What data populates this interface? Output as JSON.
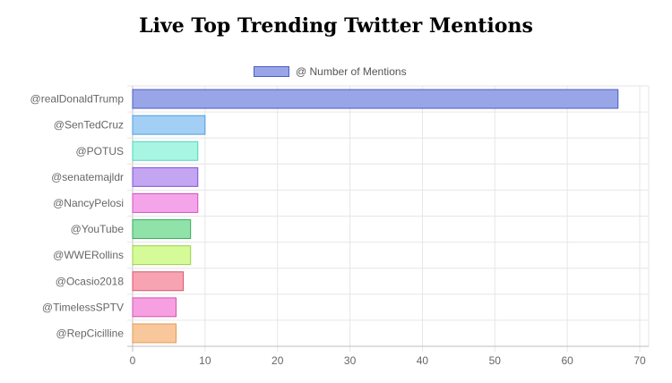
{
  "chart_data": {
    "type": "bar",
    "orientation": "horizontal",
    "title": "Live Top Trending Twitter Mentions",
    "legend": {
      "label": "@ Number of Mentions",
      "placement": "top-center"
    },
    "categories": [
      "@realDonaldTrump",
      "@SenTedCruz",
      "@POTUS",
      "@senatemajldr",
      "@NancyPelosi",
      "@YouTube",
      "@WWERollins",
      "@Ocasio2018",
      "@TimelessSPTV",
      "@RepCicilline"
    ],
    "series": [
      {
        "name": "@ Number of Mentions",
        "values": [
          67,
          10,
          9,
          9,
          9,
          8,
          8,
          7,
          6,
          6
        ]
      }
    ],
    "xlim": [
      0,
      70
    ],
    "x_ticks": [
      0,
      10,
      20,
      30,
      40,
      50,
      60,
      70
    ],
    "grid": true,
    "colors": [
      {
        "fill": "#98a6e8",
        "stroke": "#4e5bc5"
      },
      {
        "fill": "#a3cff5",
        "stroke": "#4b9ee0"
      },
      {
        "fill": "#a8f5e4",
        "stroke": "#4fd6b8"
      },
      {
        "fill": "#c3a5f2",
        "stroke": "#7e52d4"
      },
      {
        "fill": "#f4a5ea",
        "stroke": "#d64fc1"
      },
      {
        "fill": "#8fe3a8",
        "stroke": "#3aaa5c"
      },
      {
        "fill": "#d5fb98",
        "stroke": "#9ccf4a"
      },
      {
        "fill": "#f7a3b2",
        "stroke": "#d9566c"
      },
      {
        "fill": "#f7a0e1",
        "stroke": "#d44fb3"
      },
      {
        "fill": "#f8c89c",
        "stroke": "#e39a52"
      }
    ]
  }
}
